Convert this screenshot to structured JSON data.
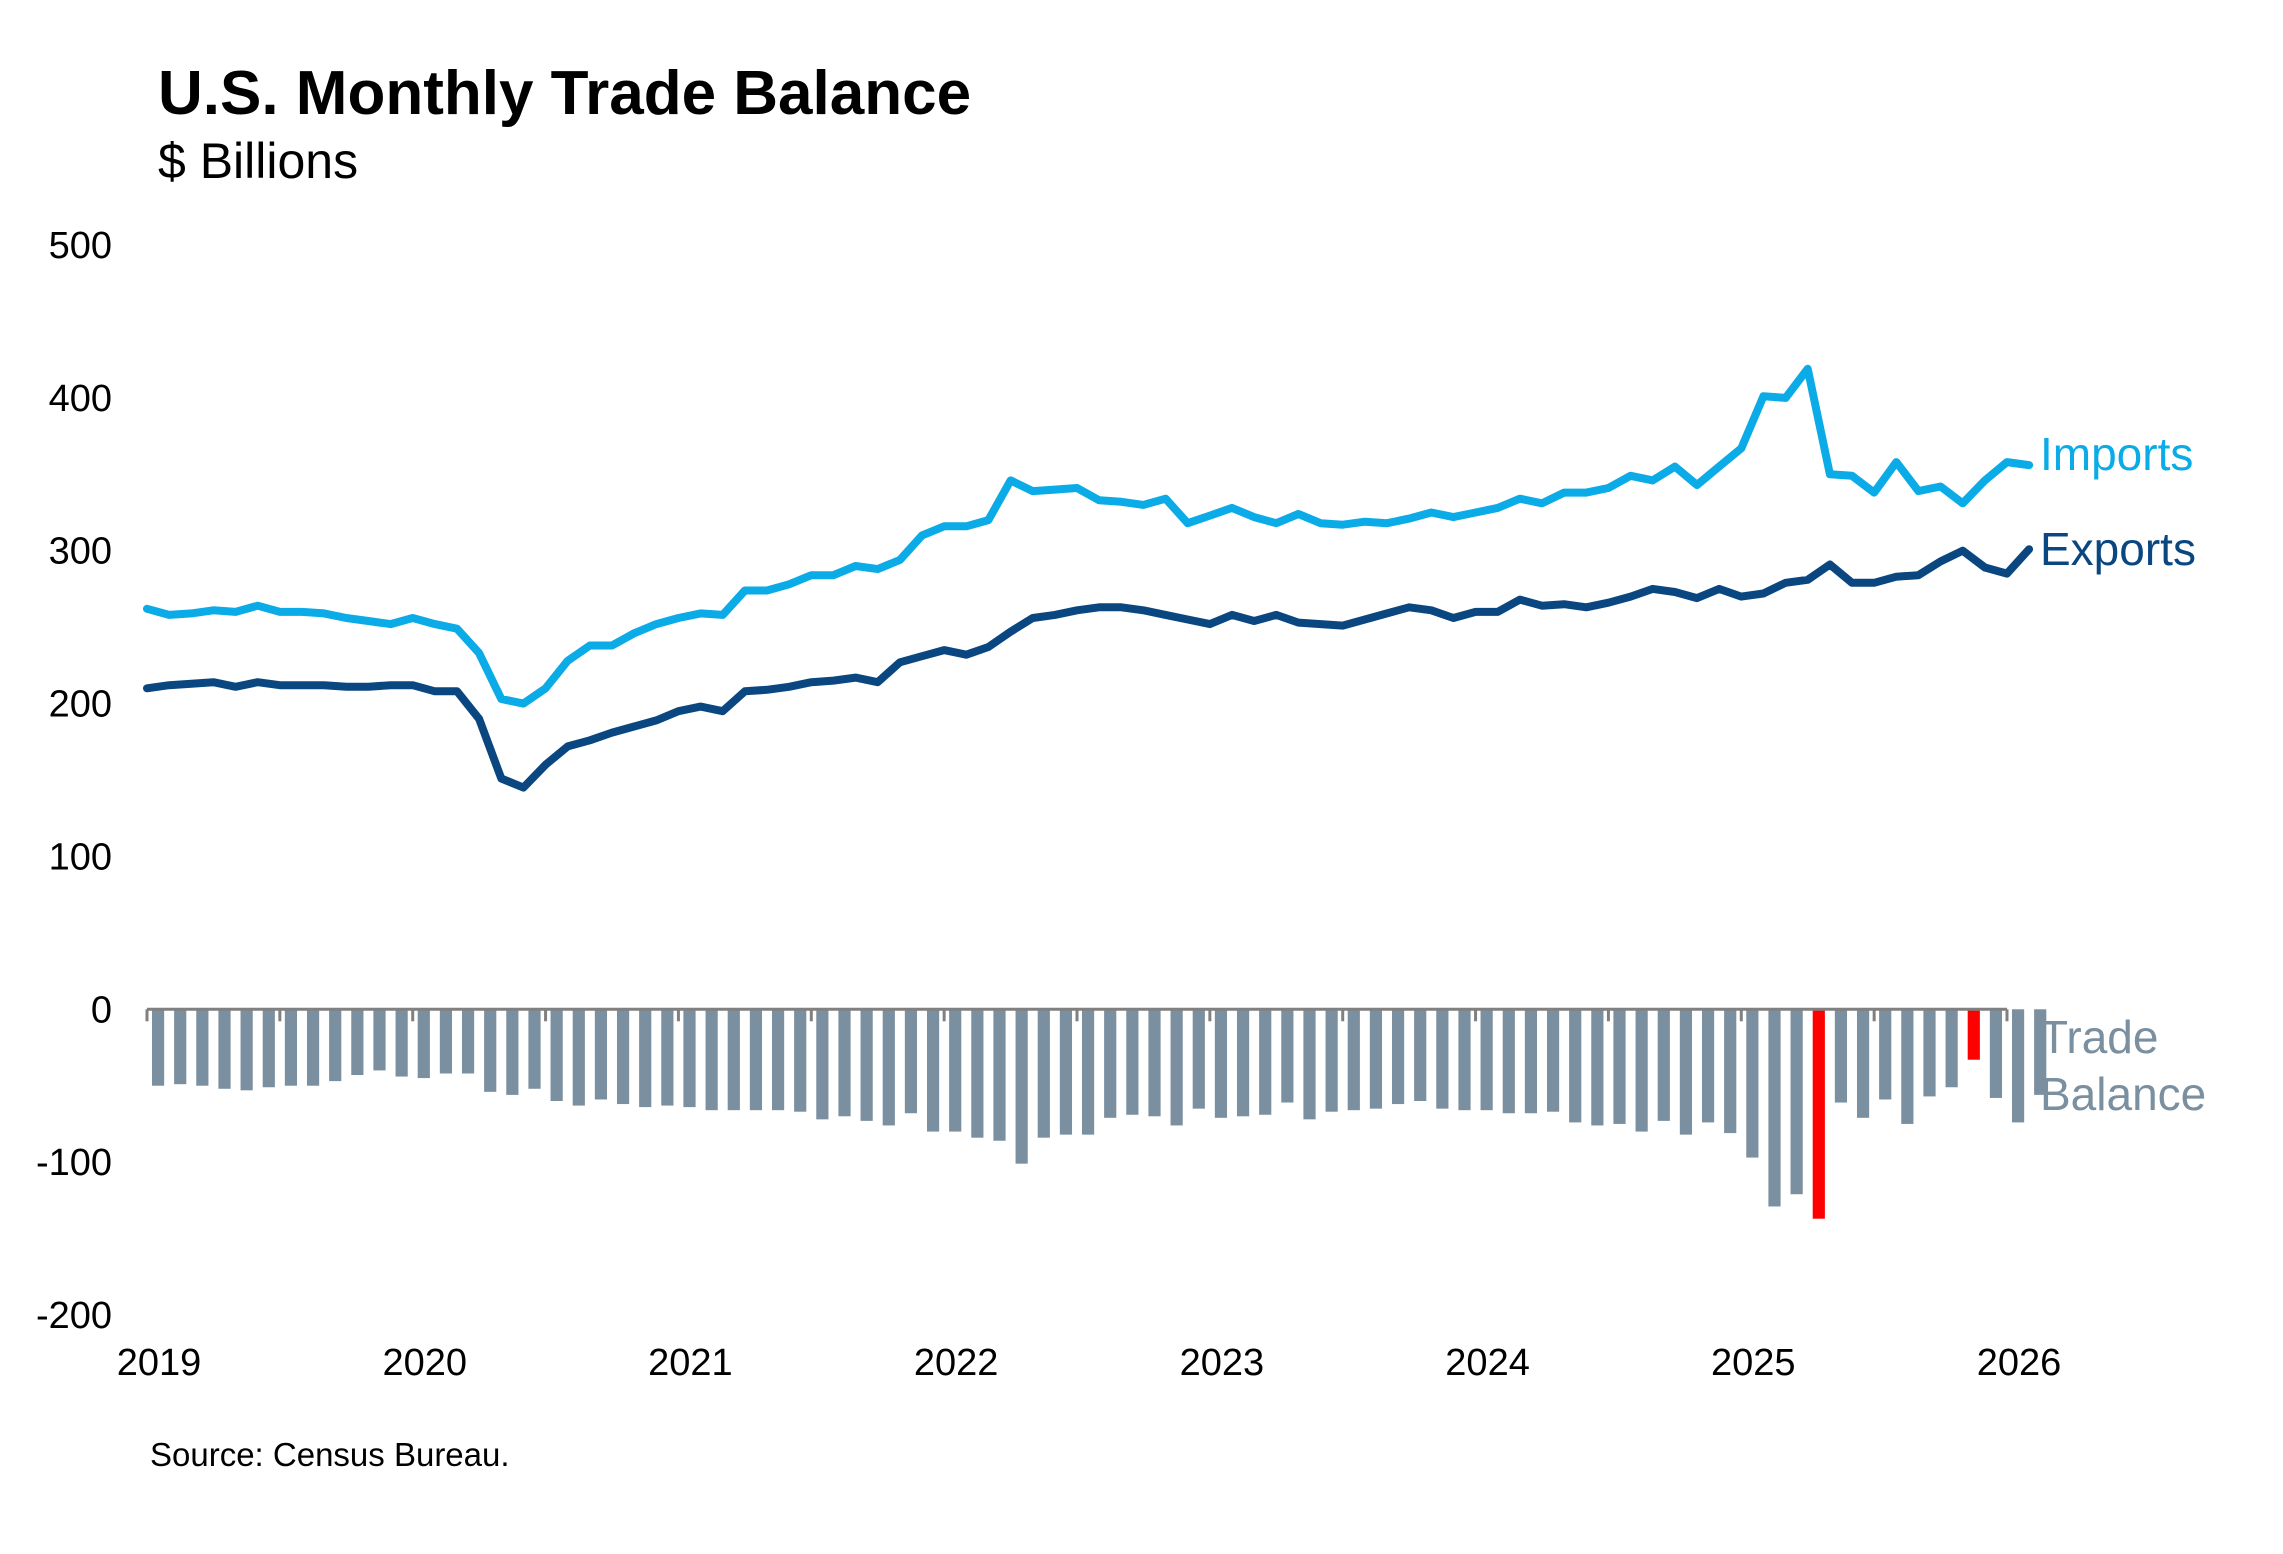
{
  "chart_data": {
    "type": "line",
    "title": "U.S. Monthly Trade Balance",
    "subtitle": "$ Billions",
    "source": "Source: Census Bureau.",
    "ylim": [
      -200,
      500
    ],
    "yticks": [
      500,
      400,
      300,
      200,
      100,
      0,
      -100,
      -200
    ],
    "ytick_labels": [
      "500",
      "400",
      "300",
      "200",
      "100",
      "0",
      "-100",
      "-200"
    ],
    "xlim": [
      "2019-01",
      "2026-01"
    ],
    "xtick_labels": [
      "2019",
      "2020",
      "2021",
      "2022",
      "2023",
      "2024",
      "2025",
      "2026"
    ],
    "start": "2019-01",
    "grid": false,
    "colors": {
      "imports": "#0aabe6",
      "exports": "#0a4780",
      "balance": "#7a8f9f",
      "highlight": "#ff0000",
      "axis": "#808080"
    },
    "series": [
      {
        "name": "Imports",
        "type": "line",
        "label_lines": [
          "Imports"
        ],
        "values": [
          262,
          258,
          259,
          261,
          260,
          264,
          260,
          260,
          259,
          256,
          254,
          252,
          256,
          252,
          249,
          233,
          203,
          200,
          210,
          228,
          238,
          238,
          246,
          252,
          256,
          259,
          258,
          274,
          274,
          278,
          284,
          284,
          290,
          288,
          294,
          310,
          316,
          316,
          320,
          346,
          339,
          340,
          341,
          333,
          332,
          330,
          334,
          318,
          323,
          328,
          322,
          318,
          324,
          318,
          317,
          319,
          318,
          321,
          325,
          322,
          325,
          328,
          334,
          331,
          338,
          338,
          341,
          349,
          346,
          355,
          343,
          355,
          367,
          401,
          400,
          419,
          350,
          349,
          338,
          358,
          339,
          342,
          331,
          346,
          358,
          356
        ]
      },
      {
        "name": "Exports",
        "type": "line",
        "label_lines": [
          "Exports"
        ],
        "values": [
          210,
          212,
          213,
          214,
          211,
          214,
          212,
          212,
          212,
          211,
          211,
          212,
          212,
          208,
          208,
          190,
          151,
          145,
          160,
          172,
          176,
          181,
          185,
          189,
          195,
          198,
          195,
          208,
          209,
          211,
          214,
          215,
          217,
          214,
          227,
          231,
          235,
          232,
          237,
          247,
          256,
          258,
          261,
          263,
          263,
          261,
          258,
          255,
          252,
          258,
          254,
          258,
          253,
          252,
          251,
          255,
          259,
          263,
          261,
          256,
          260,
          260,
          268,
          264,
          265,
          263,
          266,
          270,
          275,
          273,
          269,
          275,
          270,
          272,
          279,
          281,
          291,
          279,
          279,
          283,
          284,
          293,
          300,
          289,
          285,
          301
        ]
      },
      {
        "name": "Trade Balance",
        "type": "bar",
        "label_lines": [
          "Trade",
          "Balance"
        ],
        "values": [
          -50,
          -49,
          -50,
          -52,
          -53,
          -51,
          -50,
          -50,
          -47,
          -43,
          -40,
          -44,
          -45,
          -42,
          -42,
          -54,
          -56,
          -52,
          -60,
          -63,
          -59,
          -62,
          -64,
          -63,
          -64,
          -66,
          -66,
          -66,
          -66,
          -67,
          -72,
          -70,
          -73,
          -76,
          -68,
          -80,
          -80,
          -84,
          -86,
          -101,
          -84,
          -82,
          -82,
          -71,
          -69,
          -70,
          -76,
          -65,
          -71,
          -70,
          -69,
          -61,
          -72,
          -67,
          -66,
          -65,
          -62,
          -60,
          -65,
          -66,
          -66,
          -68,
          -68,
          -67,
          -74,
          -76,
          -75,
          -80,
          -73,
          -82,
          -74,
          -81,
          -97,
          -129,
          -121,
          -137,
          -61,
          -71,
          -59,
          -75,
          -57,
          -51,
          -33,
          -58,
          -74,
          -56
        ],
        "highlight_values": [
          -137,
          -33
        ]
      }
    ]
  }
}
